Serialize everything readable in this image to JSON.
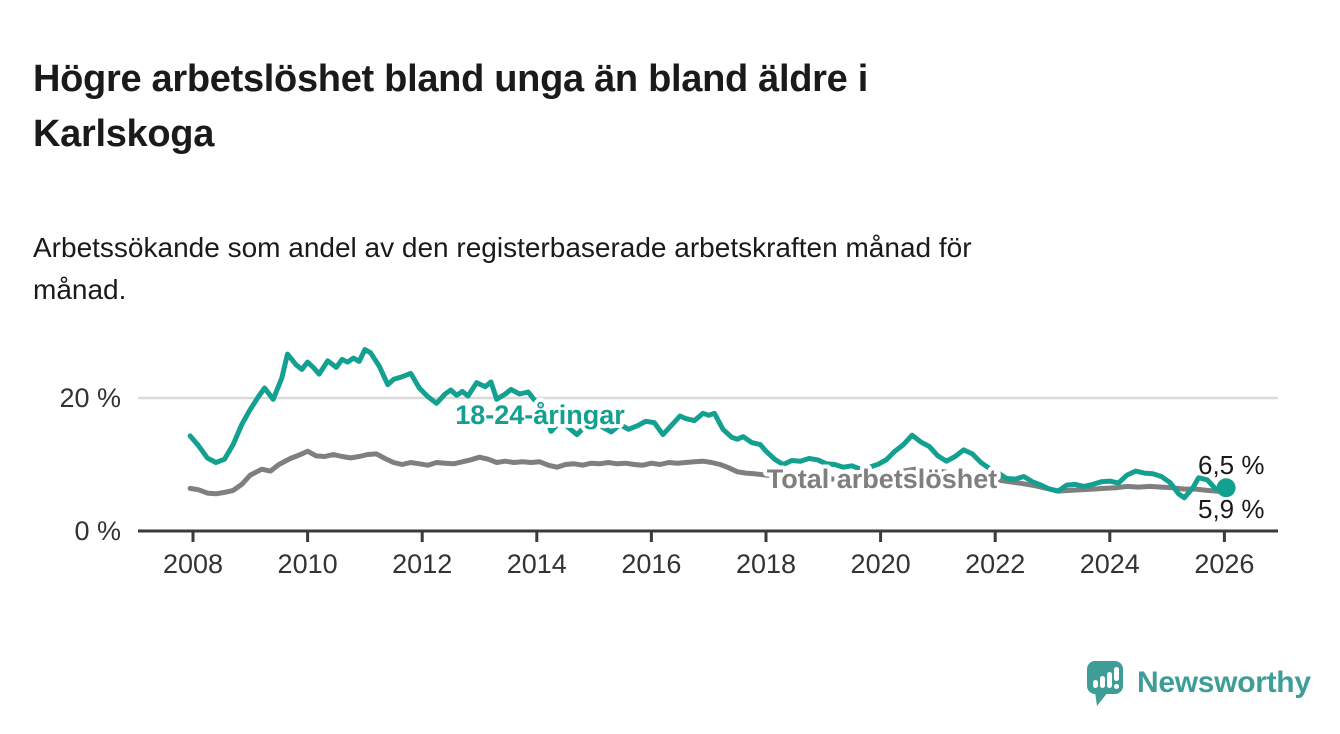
{
  "header": {
    "title": "Högre arbetslöshet bland unga än bland äldre i Karlskoga",
    "title_lines": [
      "Högre arbetslöshet bland unga än bland äldre i",
      "Karlskoga"
    ],
    "subtitle": "Arbetssökande som andel av den registerbaserade arbetskraften månad för månad.",
    "subtitle_lines": [
      "Arbetssökande som andel av den registerbaserade arbetskraften månad för",
      "månad."
    ]
  },
  "chart_data": {
    "type": "line",
    "title": "Högre arbetslöshet bland unga än bland äldre i Karlskoga",
    "subtitle": "Arbetssökande som andel av den registerbaserade arbetskraften månad för månad.",
    "unit": "%",
    "x_axis": {
      "ticks": [
        2008,
        2010,
        2012,
        2014,
        2016,
        2018,
        2020,
        2022,
        2024,
        2026
      ],
      "range": [
        2007.1,
        2026.95
      ],
      "grid": false
    },
    "y_axis": {
      "ticks": [
        {
          "value": 0,
          "label": "0 %"
        },
        {
          "value": 20,
          "label": "20 %"
        }
      ],
      "range": [
        0,
        28
      ],
      "grid": true
    },
    "legend_position": "inline-labels",
    "series": [
      {
        "name": "18-24-åringar",
        "color": "#14A090",
        "end_label": "6,5 %",
        "end_value": 6.5,
        "points": [
          [
            2007.95,
            14.3
          ],
          [
            2008.1,
            12.8
          ],
          [
            2008.25,
            11.0
          ],
          [
            2008.4,
            10.3
          ],
          [
            2008.55,
            10.8
          ],
          [
            2008.7,
            13.0
          ],
          [
            2008.85,
            16.0
          ],
          [
            2009.0,
            18.3
          ],
          [
            2009.15,
            20.3
          ],
          [
            2009.25,
            21.5
          ],
          [
            2009.4,
            19.8
          ],
          [
            2009.55,
            23.0
          ],
          [
            2009.65,
            26.6
          ],
          [
            2009.8,
            25.0
          ],
          [
            2009.9,
            24.3
          ],
          [
            2010.0,
            25.4
          ],
          [
            2010.1,
            24.6
          ],
          [
            2010.2,
            23.6
          ],
          [
            2010.35,
            25.6
          ],
          [
            2010.5,
            24.6
          ],
          [
            2010.6,
            25.8
          ],
          [
            2010.7,
            25.4
          ],
          [
            2010.8,
            26.0
          ],
          [
            2010.9,
            25.5
          ],
          [
            2011.0,
            27.3
          ],
          [
            2011.1,
            26.8
          ],
          [
            2011.25,
            24.8
          ],
          [
            2011.4,
            22.0
          ],
          [
            2011.5,
            22.8
          ],
          [
            2011.65,
            23.2
          ],
          [
            2011.8,
            23.7
          ],
          [
            2011.95,
            21.5
          ],
          [
            2012.1,
            20.2
          ],
          [
            2012.25,
            19.2
          ],
          [
            2012.4,
            20.6
          ],
          [
            2012.5,
            21.2
          ],
          [
            2012.6,
            20.4
          ],
          [
            2012.7,
            21.0
          ],
          [
            2012.8,
            20.3
          ],
          [
            2012.95,
            22.3
          ],
          [
            2013.1,
            21.7
          ],
          [
            2013.2,
            22.4
          ],
          [
            2013.3,
            19.8
          ],
          [
            2013.45,
            20.6
          ],
          [
            2013.55,
            21.3
          ],
          [
            2013.7,
            20.6
          ],
          [
            2013.85,
            20.9
          ],
          [
            2013.95,
            19.8
          ],
          [
            2014.1,
            18.3
          ],
          [
            2014.25,
            15.0
          ],
          [
            2014.4,
            16.4
          ],
          [
            2014.55,
            15.6
          ],
          [
            2014.7,
            14.5
          ],
          [
            2014.85,
            15.8
          ],
          [
            2015.0,
            16.6
          ],
          [
            2015.15,
            15.6
          ],
          [
            2015.3,
            14.9
          ],
          [
            2015.45,
            16.0
          ],
          [
            2015.6,
            15.3
          ],
          [
            2015.75,
            15.8
          ],
          [
            2015.9,
            16.5
          ],
          [
            2016.05,
            16.3
          ],
          [
            2016.2,
            14.5
          ],
          [
            2016.35,
            15.9
          ],
          [
            2016.5,
            17.3
          ],
          [
            2016.6,
            16.9
          ],
          [
            2016.75,
            16.6
          ],
          [
            2016.9,
            17.7
          ],
          [
            2017.0,
            17.4
          ],
          [
            2017.1,
            17.7
          ],
          [
            2017.25,
            15.3
          ],
          [
            2017.4,
            14.1
          ],
          [
            2017.5,
            13.8
          ],
          [
            2017.6,
            14.2
          ],
          [
            2017.75,
            13.3
          ],
          [
            2017.9,
            13.0
          ],
          [
            2018.0,
            12.0
          ],
          [
            2018.15,
            10.8
          ],
          [
            2018.3,
            10.0
          ],
          [
            2018.45,
            10.6
          ],
          [
            2018.6,
            10.5
          ],
          [
            2018.75,
            10.9
          ],
          [
            2018.9,
            10.7
          ],
          [
            2019.05,
            10.1
          ],
          [
            2019.2,
            10.0
          ],
          [
            2019.35,
            9.6
          ],
          [
            2019.5,
            9.8
          ],
          [
            2019.65,
            9.3
          ],
          [
            2019.8,
            9.6
          ],
          [
            2019.95,
            10.0
          ],
          [
            2020.1,
            10.7
          ],
          [
            2020.25,
            12.0
          ],
          [
            2020.4,
            13.0
          ],
          [
            2020.55,
            14.4
          ],
          [
            2020.7,
            13.4
          ],
          [
            2020.85,
            12.7
          ],
          [
            2021.0,
            11.3
          ],
          [
            2021.15,
            10.5
          ],
          [
            2021.3,
            11.2
          ],
          [
            2021.45,
            12.2
          ],
          [
            2021.6,
            11.6
          ],
          [
            2021.75,
            10.3
          ],
          [
            2021.9,
            9.4
          ],
          [
            2022.05,
            8.7
          ],
          [
            2022.2,
            7.9
          ],
          [
            2022.35,
            7.8
          ],
          [
            2022.5,
            8.2
          ],
          [
            2022.65,
            7.4
          ],
          [
            2022.8,
            6.9
          ],
          [
            2022.95,
            6.3
          ],
          [
            2023.1,
            6.0
          ],
          [
            2023.25,
            6.9
          ],
          [
            2023.4,
            7.0
          ],
          [
            2023.55,
            6.7
          ],
          [
            2023.7,
            7.0
          ],
          [
            2023.85,
            7.4
          ],
          [
            2024.0,
            7.5
          ],
          [
            2024.15,
            7.2
          ],
          [
            2024.3,
            8.4
          ],
          [
            2024.45,
            9.0
          ],
          [
            2024.6,
            8.7
          ],
          [
            2024.75,
            8.6
          ],
          [
            2024.9,
            8.2
          ],
          [
            2025.05,
            7.3
          ],
          [
            2025.2,
            5.6
          ],
          [
            2025.3,
            5.0
          ],
          [
            2025.45,
            6.5
          ],
          [
            2025.55,
            8.0
          ],
          [
            2025.7,
            7.7
          ],
          [
            2025.85,
            6.3
          ],
          [
            2026.03,
            6.5
          ]
        ]
      },
      {
        "name": "Total arbetslöshet",
        "color": "#7F7F7F",
        "end_label": "5,9 %",
        "end_value": 5.9,
        "points": [
          [
            2007.95,
            6.4
          ],
          [
            2008.1,
            6.2
          ],
          [
            2008.25,
            5.7
          ],
          [
            2008.4,
            5.6
          ],
          [
            2008.55,
            5.8
          ],
          [
            2008.7,
            6.1
          ],
          [
            2008.85,
            7.0
          ],
          [
            2009.0,
            8.4
          ],
          [
            2009.2,
            9.3
          ],
          [
            2009.35,
            9.0
          ],
          [
            2009.5,
            10.0
          ],
          [
            2009.7,
            10.9
          ],
          [
            2009.9,
            11.6
          ],
          [
            2010.0,
            12.0
          ],
          [
            2010.15,
            11.3
          ],
          [
            2010.3,
            11.2
          ],
          [
            2010.45,
            11.5
          ],
          [
            2010.6,
            11.2
          ],
          [
            2010.75,
            11.0
          ],
          [
            2010.9,
            11.2
          ],
          [
            2011.05,
            11.5
          ],
          [
            2011.2,
            11.6
          ],
          [
            2011.35,
            10.9
          ],
          [
            2011.5,
            10.3
          ],
          [
            2011.65,
            10.0
          ],
          [
            2011.8,
            10.3
          ],
          [
            2011.95,
            10.1
          ],
          [
            2012.1,
            9.9
          ],
          [
            2012.25,
            10.3
          ],
          [
            2012.4,
            10.2
          ],
          [
            2012.55,
            10.1
          ],
          [
            2012.7,
            10.4
          ],
          [
            2012.85,
            10.7
          ],
          [
            2013.0,
            11.1
          ],
          [
            2013.15,
            10.8
          ],
          [
            2013.3,
            10.3
          ],
          [
            2013.45,
            10.5
          ],
          [
            2013.6,
            10.3
          ],
          [
            2013.75,
            10.4
          ],
          [
            2013.9,
            10.3
          ],
          [
            2014.05,
            10.4
          ],
          [
            2014.2,
            9.9
          ],
          [
            2014.35,
            9.6
          ],
          [
            2014.5,
            10.0
          ],
          [
            2014.65,
            10.1
          ],
          [
            2014.8,
            9.9
          ],
          [
            2014.95,
            10.2
          ],
          [
            2015.1,
            10.1
          ],
          [
            2015.25,
            10.3
          ],
          [
            2015.4,
            10.1
          ],
          [
            2015.55,
            10.2
          ],
          [
            2015.7,
            10.0
          ],
          [
            2015.85,
            9.9
          ],
          [
            2016.0,
            10.2
          ],
          [
            2016.15,
            10.0
          ],
          [
            2016.3,
            10.3
          ],
          [
            2016.45,
            10.2
          ],
          [
            2016.6,
            10.3
          ],
          [
            2016.75,
            10.4
          ],
          [
            2016.9,
            10.5
          ],
          [
            2017.05,
            10.3
          ],
          [
            2017.2,
            10.0
          ],
          [
            2017.35,
            9.5
          ],
          [
            2017.5,
            8.9
          ],
          [
            2017.65,
            8.7
          ],
          [
            2017.8,
            8.6
          ],
          [
            2018.0,
            8.4
          ],
          [
            2018.3,
            8.2
          ],
          [
            2018.6,
            8.0
          ],
          [
            2018.9,
            7.9
          ],
          [
            2019.2,
            7.8
          ],
          [
            2019.5,
            7.9
          ],
          [
            2019.8,
            8.1
          ],
          [
            2020.1,
            8.4
          ],
          [
            2020.4,
            9.0
          ],
          [
            2020.6,
            9.3
          ],
          [
            2020.9,
            9.1
          ],
          [
            2021.2,
            8.8
          ],
          [
            2021.5,
            8.5
          ],
          [
            2021.8,
            8.1
          ],
          [
            2022.1,
            7.6
          ],
          [
            2022.35,
            7.3
          ],
          [
            2022.5,
            7.1
          ],
          [
            2022.7,
            6.8
          ],
          [
            2022.9,
            6.4
          ],
          [
            2023.1,
            6.0
          ],
          [
            2023.3,
            6.1
          ],
          [
            2023.5,
            6.2
          ],
          [
            2023.7,
            6.3
          ],
          [
            2023.9,
            6.4
          ],
          [
            2024.1,
            6.5
          ],
          [
            2024.3,
            6.7
          ],
          [
            2024.5,
            6.6
          ],
          [
            2024.7,
            6.7
          ],
          [
            2024.9,
            6.6
          ],
          [
            2025.1,
            6.5
          ],
          [
            2025.3,
            6.3
          ],
          [
            2025.5,
            6.3
          ],
          [
            2025.7,
            6.1
          ],
          [
            2025.85,
            6.0
          ],
          [
            2026.03,
            5.9
          ]
        ]
      }
    ]
  },
  "branding": {
    "logo_text": "Newsworthy",
    "logo_color": "#3F9D98"
  }
}
